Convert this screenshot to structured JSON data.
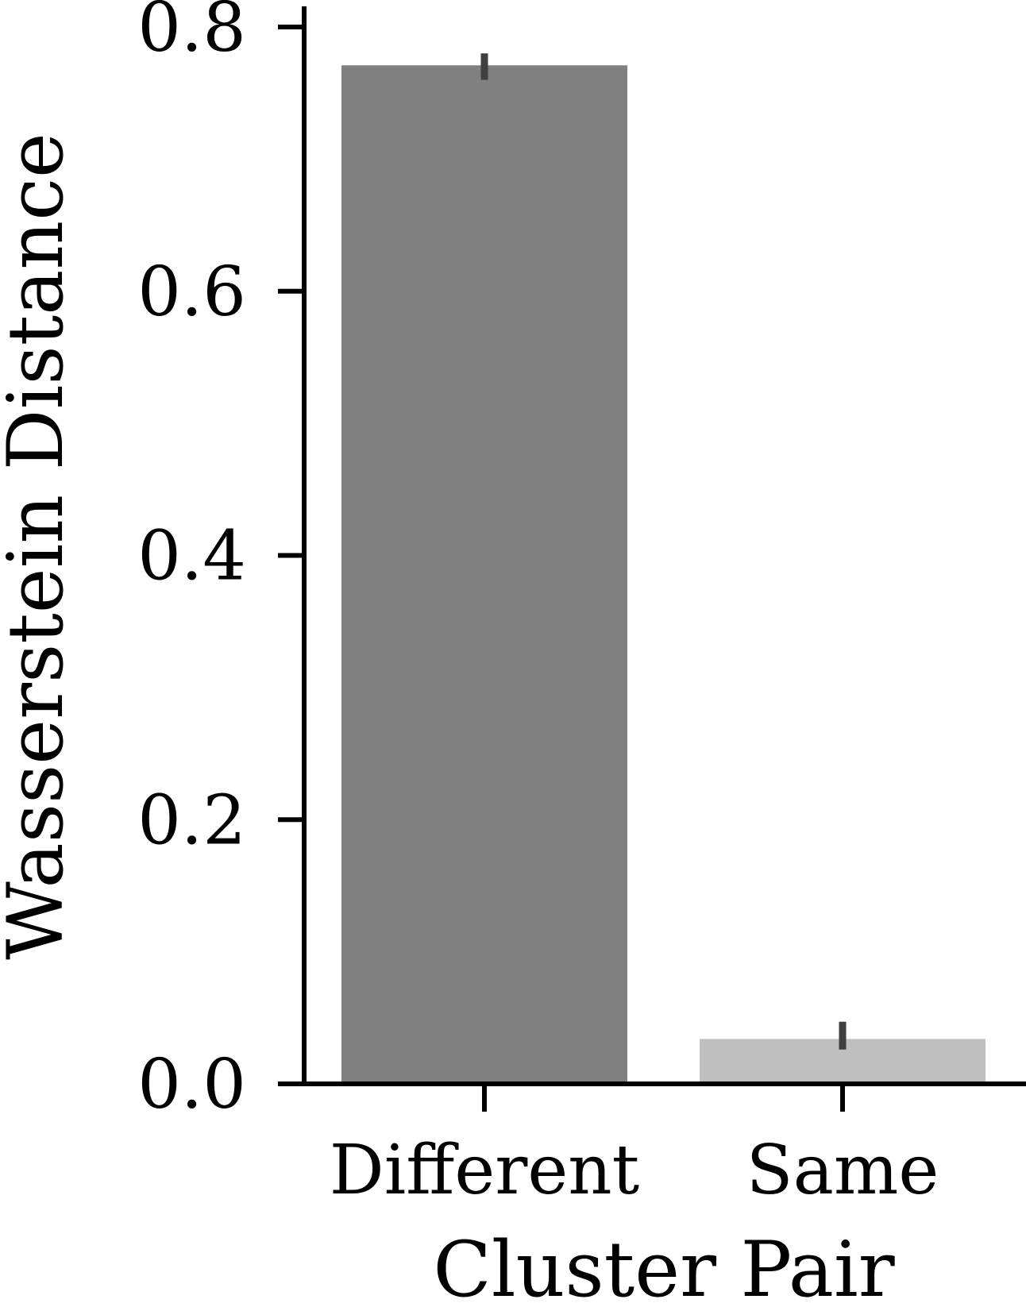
{
  "chart_data": {
    "type": "bar",
    "title": "",
    "xlabel": "Cluster Pair",
    "ylabel": "Wasserstein Distance",
    "categories": [
      "Different",
      "Same"
    ],
    "values": [
      0.771,
      0.034
    ],
    "error_bars": [
      {
        "low": 0.76,
        "high": 0.78
      },
      {
        "low": 0.026,
        "high": 0.047
      }
    ],
    "bar_colors": [
      "#808080",
      "#bfbfbf"
    ],
    "errorbar_color": "#3f3f3f",
    "ylim": [
      0.0,
      0.82
    ],
    "yticks": [
      0.0,
      0.2,
      0.4,
      0.6,
      0.8
    ],
    "ytick_labels": [
      "0.0",
      "0.2",
      "0.4",
      "0.6",
      "0.8"
    ],
    "grid": false,
    "legend": "none"
  }
}
